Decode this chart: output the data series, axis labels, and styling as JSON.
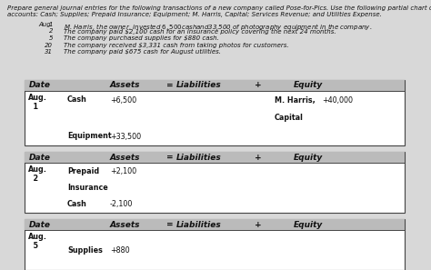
{
  "title_line1": "Prepare general journal entries for the following transactions of a new company called Pose-for-Pics. Use the following partial chart of",
  "title_line2": "accounts: Cash; Supplies; Prepaid Insurance; Equipment; M. Harris, Capital; Services Revenue; and Utilities Expense.",
  "aug_label": "Aug.",
  "instructions": [
    [
      "1",
      "M. Harris, the owner, invested $6,500 cash and $33,500 of photography equipment in the company."
    ],
    [
      "2",
      "The company paid $2,100 cash for an insurance policy covering the next 24 months."
    ],
    [
      "5",
      "The company purchased supplies for $880 cash."
    ],
    [
      "20",
      "The company received $3,331 cash from taking photos for customers."
    ],
    [
      "31",
      "The company paid $675 cash for August utilities."
    ]
  ],
  "tables": [
    {
      "date": "Aug.\n  1",
      "asset_rows": [
        [
          "Cash",
          "+6,500"
        ],
        [
          "",
          ""
        ],
        [
          "Equipment",
          "+33,500"
        ]
      ],
      "equity_rows": [
        [
          "M. Harris,",
          "+40,000"
        ],
        [
          "Capital",
          ""
        ],
        [
          "",
          ""
        ]
      ]
    },
    {
      "date": "Aug.\n  2",
      "asset_rows": [
        [
          "Prepaid",
          "+2,100"
        ],
        [
          "Insurance",
          ""
        ],
        [
          "Cash",
          "-2,100"
        ]
      ],
      "equity_rows": [
        [
          "",
          ""
        ],
        [
          "",
          ""
        ],
        [
          "",
          ""
        ]
      ]
    },
    {
      "date": "Aug.\n  5",
      "asset_rows": [
        [
          "Supplies",
          "+880"
        ]
      ],
      "equity_rows": [
        [
          "",
          ""
        ]
      ]
    }
  ],
  "bg_color": "#d8d8d8",
  "table_bg": "#ffffff",
  "header_bg": "#bbbbbb",
  "border_color": "#444444",
  "text_color": "#111111",
  "font_size": 5.8,
  "header_font_size": 6.5,
  "title_font_size": 5.0,
  "instr_font_size": 5.0
}
